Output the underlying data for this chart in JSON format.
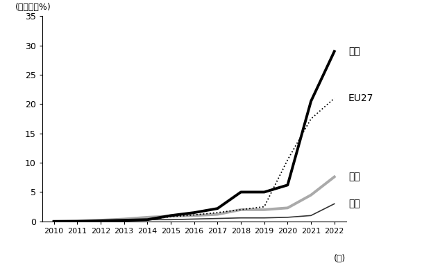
{
  "years": [
    2010,
    2011,
    2012,
    2013,
    2014,
    2015,
    2016,
    2017,
    2018,
    2019,
    2020,
    2021,
    2022
  ],
  "china": [
    0.0,
    0.0,
    0.1,
    0.2,
    0.3,
    1.0,
    1.5,
    2.2,
    5.0,
    5.0,
    6.2,
    20.5,
    29.0
  ],
  "eu27": [
    0.0,
    0.0,
    0.1,
    0.2,
    0.3,
    0.8,
    1.1,
    1.5,
    2.0,
    2.5,
    10.5,
    17.5,
    21.0
  ],
  "usa": [
    0.0,
    0.1,
    0.2,
    0.4,
    0.7,
    0.9,
    1.0,
    1.2,
    2.0,
    2.0,
    2.3,
    4.5,
    7.6
  ],
  "japan": [
    0.0,
    0.05,
    0.1,
    0.15,
    0.3,
    0.3,
    0.4,
    0.5,
    0.6,
    0.6,
    0.7,
    1.0,
    3.0
  ],
  "ylim": [
    0,
    35
  ],
  "yticks": [
    0,
    5,
    10,
    15,
    20,
    25,
    30,
    35
  ],
  "ylabel": "(シェア、%)",
  "xlabel": "(年)",
  "china_label": "中国",
  "eu27_label": "EU27",
  "usa_label": "米国",
  "japan_label": "日本",
  "background_color": "#ffffff"
}
